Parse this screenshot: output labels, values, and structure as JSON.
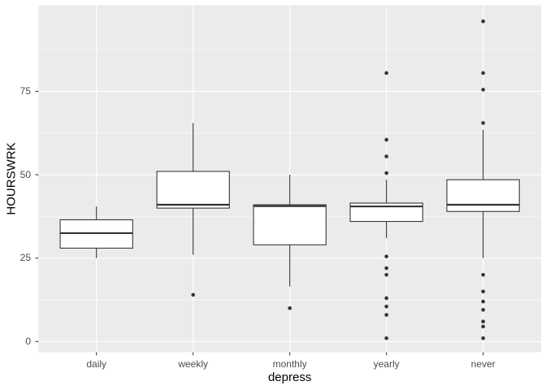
{
  "figure": {
    "background": "#FFFFFF"
  },
  "chart_data": {
    "type": "boxplot",
    "title": "",
    "xlabel": "depress",
    "ylabel": "HOURSWRK",
    "categories": [
      "daily",
      "weekly",
      "monthly",
      "yearly",
      "never"
    ],
    "y_ticks": [
      0,
      25,
      50,
      75
    ],
    "y_minor_ticks": [
      12.5,
      37.5,
      62.5,
      87.5
    ],
    "ylim": [
      -3.2,
      100.8
    ],
    "grid": "on",
    "legend": "none",
    "style": {
      "panel_bg": "#EBEBEB",
      "grid_color": "#FFFFFF",
      "box_fill": "#FFFFFF",
      "line_color": "#333333",
      "tick_mark_color": "#333333",
      "tick_label_color": "#4D4D4D",
      "axis_title_color": "#000000"
    },
    "series": [
      {
        "category": "daily",
        "whisker_low": 25,
        "q1": 28,
        "median": 32.5,
        "q3": 36.5,
        "whisker_high": 40.5,
        "outliers": []
      },
      {
        "category": "weekly",
        "whisker_low": 26,
        "q1": 40,
        "median": 41,
        "q3": 51,
        "whisker_high": 65.5,
        "outliers": [
          14
        ]
      },
      {
        "category": "monthly",
        "whisker_low": 16.5,
        "q1": 29,
        "median": 40.6,
        "q3": 41,
        "whisker_high": 50,
        "outliers": [
          10
        ]
      },
      {
        "category": "yearly",
        "whisker_low": 31,
        "q1": 36,
        "median": 40.5,
        "q3": 41.5,
        "whisker_high": 48.5,
        "outliers": [
          80.5,
          60.5,
          55.5,
          50.5,
          25.5,
          22,
          20,
          13,
          10.5,
          8,
          1
        ]
      },
      {
        "category": "never",
        "whisker_low": 25,
        "q1": 39,
        "median": 41,
        "q3": 48.5,
        "whisker_high": 63.5,
        "outliers": [
          96,
          80.5,
          75.5,
          65.5,
          20,
          15,
          12,
          9.5,
          6,
          4.5,
          1
        ]
      }
    ]
  }
}
